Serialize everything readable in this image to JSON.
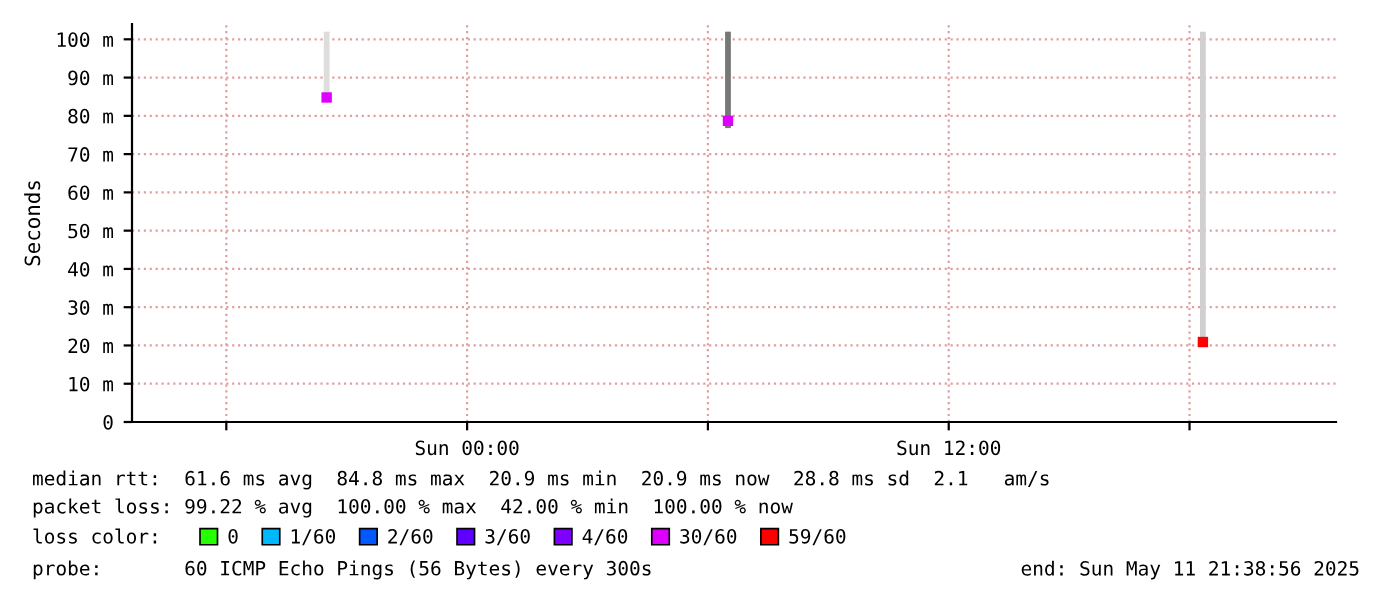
{
  "chart_data": {
    "type": "scatter",
    "ylabel": "Seconds",
    "legend_title": "loss color:",
    "legend": "bottom",
    "grid": true,
    "marker": "square",
    "x": [
      "2025-05-10T20:30",
      "2025-05-11T06:30",
      "2025-05-11T18:20"
    ],
    "xlim": [
      "2025-05-10T15:39",
      "2025-05-11T21:39"
    ],
    "xticks": [
      {
        "value": "2025-05-10T18:00",
        "label": null
      },
      {
        "value": "2025-05-11T00:00",
        "label": "Sun 00:00"
      },
      {
        "value": "2025-05-11T06:00",
        "label": null
      },
      {
        "value": "2025-05-11T12:00",
        "label": "Sun 12:00"
      },
      {
        "value": "2025-05-11T18:00",
        "label": null
      }
    ],
    "ylim": [
      0,
      104
    ],
    "yticks": [
      0,
      {
        "value": 10,
        "label": "10 m"
      },
      {
        "value": 20,
        "label": "20 m"
      },
      {
        "value": 30,
        "label": "30 m"
      },
      {
        "value": 40,
        "label": "40 m"
      },
      {
        "value": 50,
        "label": "50 m"
      },
      {
        "value": 60,
        "label": "60 m"
      },
      {
        "value": 70,
        "label": "70 m"
      },
      {
        "value": 80,
        "label": "80 m"
      },
      {
        "value": 90,
        "label": "90 m"
      },
      {
        "value": 100,
        "label": "100 m"
      }
    ],
    "series": [
      {
        "type": "bar",
        "base": [
          84.8,
          76.8,
          20.9
        ],
        "values": [
          17.2,
          25.2,
          81.1
        ],
        "colors": [
          "#dddddd",
          "#777777",
          "#d0d0d0"
        ]
      },
      {
        "name": "0",
        "color": "#26ff00",
        "values": [
          null,
          null,
          null
        ]
      },
      {
        "name": "1/60",
        "color": "#00b8ff",
        "values": [
          null,
          null,
          null
        ]
      },
      {
        "name": "2/60",
        "color": "#0059ff",
        "values": [
          null,
          null,
          null
        ]
      },
      {
        "name": "3/60",
        "color": "#5e00ff",
        "values": [
          null,
          null,
          null
        ]
      },
      {
        "name": "4/60",
        "color": "#7e00ff",
        "values": [
          null,
          null,
          null
        ]
      },
      {
        "name": "30/60",
        "color": "#dd00ff",
        "values": [
          84.8,
          78.7,
          null
        ]
      },
      {
        "name": "59/60",
        "color": "#ff0000",
        "values": [
          null,
          null,
          20.9
        ]
      }
    ],
    "annotations": [
      "median rtt:  61.6 ms avg  84.8 ms max  20.9 ms min  20.9 ms now  28.8 ms sd  2.1   am/s",
      "packet loss: 99.22 % avg  100.00 % max  42.00 % min  100.00 % now",
      "probe:       60 ICMP Echo Pings (56 Bytes) every 300s",
      "end: Sun May 11 21:38:56 2025"
    ]
  }
}
